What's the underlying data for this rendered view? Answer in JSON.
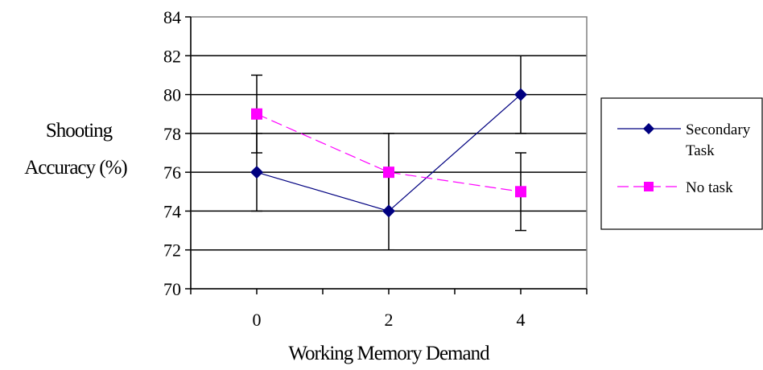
{
  "chart_data": {
    "type": "line",
    "title": "",
    "xlabel": "Working Memory Demand",
    "ylabel_lines": [
      "Shooting",
      "Accuracy (%)"
    ],
    "categories": [
      "0",
      "2",
      "4"
    ],
    "xlim": [
      -1,
      5
    ],
    "ylim": [
      70,
      84
    ],
    "yticks": [
      "70",
      "72",
      "74",
      "76",
      "78",
      "80",
      "82",
      "84"
    ],
    "grid": "horizontal",
    "legend": "right",
    "series": [
      {
        "name_lines": [
          "Secondary",
          "Task"
        ],
        "values": [
          76,
          74,
          80
        ],
        "error": [
          2,
          2,
          2
        ],
        "color": "#000080",
        "marker": "diamond",
        "dash": "solid"
      },
      {
        "name_lines": [
          "No task"
        ],
        "values": [
          79,
          76,
          75
        ],
        "error": [
          2,
          2,
          2
        ],
        "color": "#FF00FF",
        "marker": "square",
        "dash": "dashed"
      }
    ]
  }
}
